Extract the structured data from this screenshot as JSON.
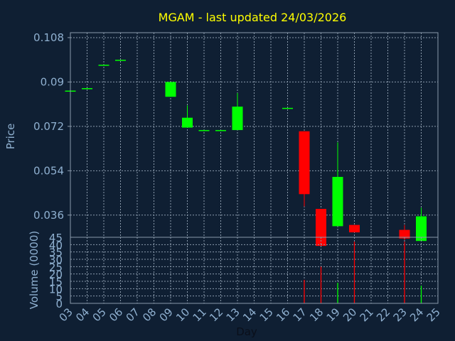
{
  "chart_data": {
    "type": "candlestick",
    "title": "MGAM - last updated 24/03/2026",
    "xlabel": "Day",
    "price_panel": {
      "ylabel": "Price",
      "ylim": [
        0.027,
        0.11
      ],
      "yticks": [
        "0.108",
        "0.09",
        "0.072",
        "0.054",
        "0.036"
      ],
      "ytick_values": [
        0.108,
        0.09,
        0.072,
        0.054,
        0.036
      ]
    },
    "volume_panel": {
      "ylabel": "Volume (0000)",
      "ylim": [
        0,
        45
      ],
      "yticks": [
        "0",
        "5",
        "10",
        "15",
        "20",
        "25",
        "30",
        "35",
        "40",
        "45"
      ],
      "ytick_values": [
        0,
        5,
        10,
        15,
        20,
        25,
        30,
        35,
        40,
        45
      ]
    },
    "categories": [
      "03",
      "04",
      "05",
      "06",
      "07",
      "08",
      "09",
      "10",
      "11",
      "12",
      "13",
      "14",
      "15",
      "16",
      "17",
      "18",
      "19",
      "20",
      "21",
      "22",
      "23",
      "24",
      "25"
    ],
    "up_color": "#00ff00",
    "down_color": "#ff0000",
    "candles": [
      {
        "day": "03",
        "open": 0.0865,
        "close": 0.0865,
        "high": 0.0865,
        "low": 0.0865
      },
      {
        "day": "04",
        "open": 0.0875,
        "close": 0.0875,
        "high": 0.0875,
        "low": 0.0875
      },
      {
        "day": "05",
        "open": 0.097,
        "close": 0.097,
        "high": 0.097,
        "low": 0.097
      },
      {
        "day": "06",
        "open": 0.099,
        "close": 0.099,
        "high": 0.099,
        "low": 0.099
      },
      {
        "day": "09",
        "open": 0.084,
        "close": 0.09,
        "high": 0.09,
        "low": 0.084
      },
      {
        "day": "10",
        "open": 0.0715,
        "close": 0.0755,
        "high": 0.0805,
        "low": 0.0715
      },
      {
        "day": "11",
        "open": 0.0705,
        "close": 0.0705,
        "high": 0.0705,
        "low": 0.0705
      },
      {
        "day": "12",
        "open": 0.0705,
        "close": 0.0705,
        "high": 0.0705,
        "low": 0.0705
      },
      {
        "day": "13",
        "open": 0.0705,
        "close": 0.08,
        "high": 0.0855,
        "low": 0.0705
      },
      {
        "day": "16",
        "open": 0.0795,
        "close": 0.0795,
        "high": 0.0795,
        "low": 0.0795
      },
      {
        "day": "17",
        "open": 0.07,
        "close": 0.0445,
        "high": 0.07,
        "low": 0.0395
      },
      {
        "day": "18",
        "open": 0.0385,
        "close": 0.0235,
        "high": 0.0385,
        "low": 0.0235
      },
      {
        "day": "19",
        "open": 0.0315,
        "close": 0.0515,
        "high": 0.0655,
        "low": 0.0315
      },
      {
        "day": "20",
        "open": 0.032,
        "close": 0.029,
        "high": 0.032,
        "low": 0.029
      },
      {
        "day": "23",
        "open": 0.03,
        "close": 0.0265,
        "high": 0.032,
        "low": 0.022
      },
      {
        "day": "24",
        "open": 0.0255,
        "close": 0.0355,
        "high": 0.039,
        "low": 0.0255
      }
    ],
    "volume": [
      {
        "day": "17",
        "value": 16,
        "direction": "down"
      },
      {
        "day": "18",
        "value": 25,
        "direction": "down"
      },
      {
        "day": "19",
        "value": 14,
        "direction": "up"
      },
      {
        "day": "20",
        "value": 42,
        "direction": "down"
      },
      {
        "day": "23",
        "value": 41,
        "direction": "down"
      },
      {
        "day": "24",
        "value": 12,
        "direction": "up"
      }
    ],
    "grid": true
  }
}
